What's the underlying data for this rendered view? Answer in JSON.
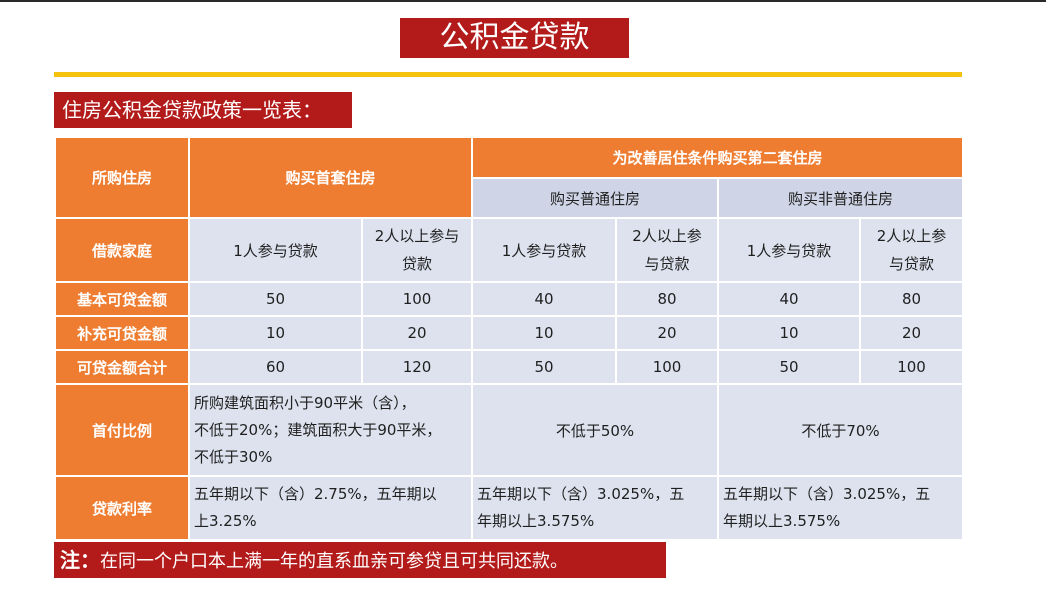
{
  "title": "公积金贷款",
  "subtitle": "住房公积金贷款政策一览表：",
  "table": {
    "h_purchased": "所购住房",
    "h_first_home": "购买首套住房",
    "h_second_home": "为改善居住条件购买第二套住房",
    "h_ordinary": "购买普通住房",
    "h_non_ordinary": "购买非普通住房",
    "row_household": {
      "label": "借款家庭",
      "c1": "1人参与贷款",
      "c2a": "2人以上参与",
      "c2b": "贷款",
      "c3": "1人参与贷款",
      "c4a": "2人以上参",
      "c4b": "与贷款",
      "c5": "1人参与贷款",
      "c6a": "2人以上参",
      "c6b": "与贷款"
    },
    "row_basic": {
      "label": "基本可贷金额",
      "values": [
        "50",
        "100",
        "40",
        "80",
        "40",
        "80"
      ]
    },
    "row_supplement": {
      "label": "补充可贷金额",
      "values": [
        "10",
        "20",
        "10",
        "20",
        "10",
        "20"
      ]
    },
    "row_total": {
      "label": "可贷金额合计",
      "values": [
        "60",
        "120",
        "50",
        "100",
        "50",
        "100"
      ]
    },
    "row_down": {
      "label": "首付比例",
      "first_l1": "所购建筑面积小于90平米（含），",
      "first_l2": "不低于20%；建筑面积大于90平米，",
      "first_l3": "不低于30%",
      "ordinary": "不低于50%",
      "non_ordinary": "不低于70%"
    },
    "row_rate": {
      "label": "贷款利率",
      "first_l1": "五年期以下（含）2.75%，五年期以",
      "first_l2": "上3.25%",
      "ordinary_l1": "五年期以下（含）3.025%，五",
      "ordinary_l2": "年期以上3.575%",
      "non_ordinary_l1": "五年期以下（含）3.025%，五",
      "non_ordinary_l2": "年期以上3.575%"
    }
  },
  "note": {
    "label": "注：",
    "text": "在同一个户口本上满一年的直系血亲可参贷且可共同还款。"
  }
}
